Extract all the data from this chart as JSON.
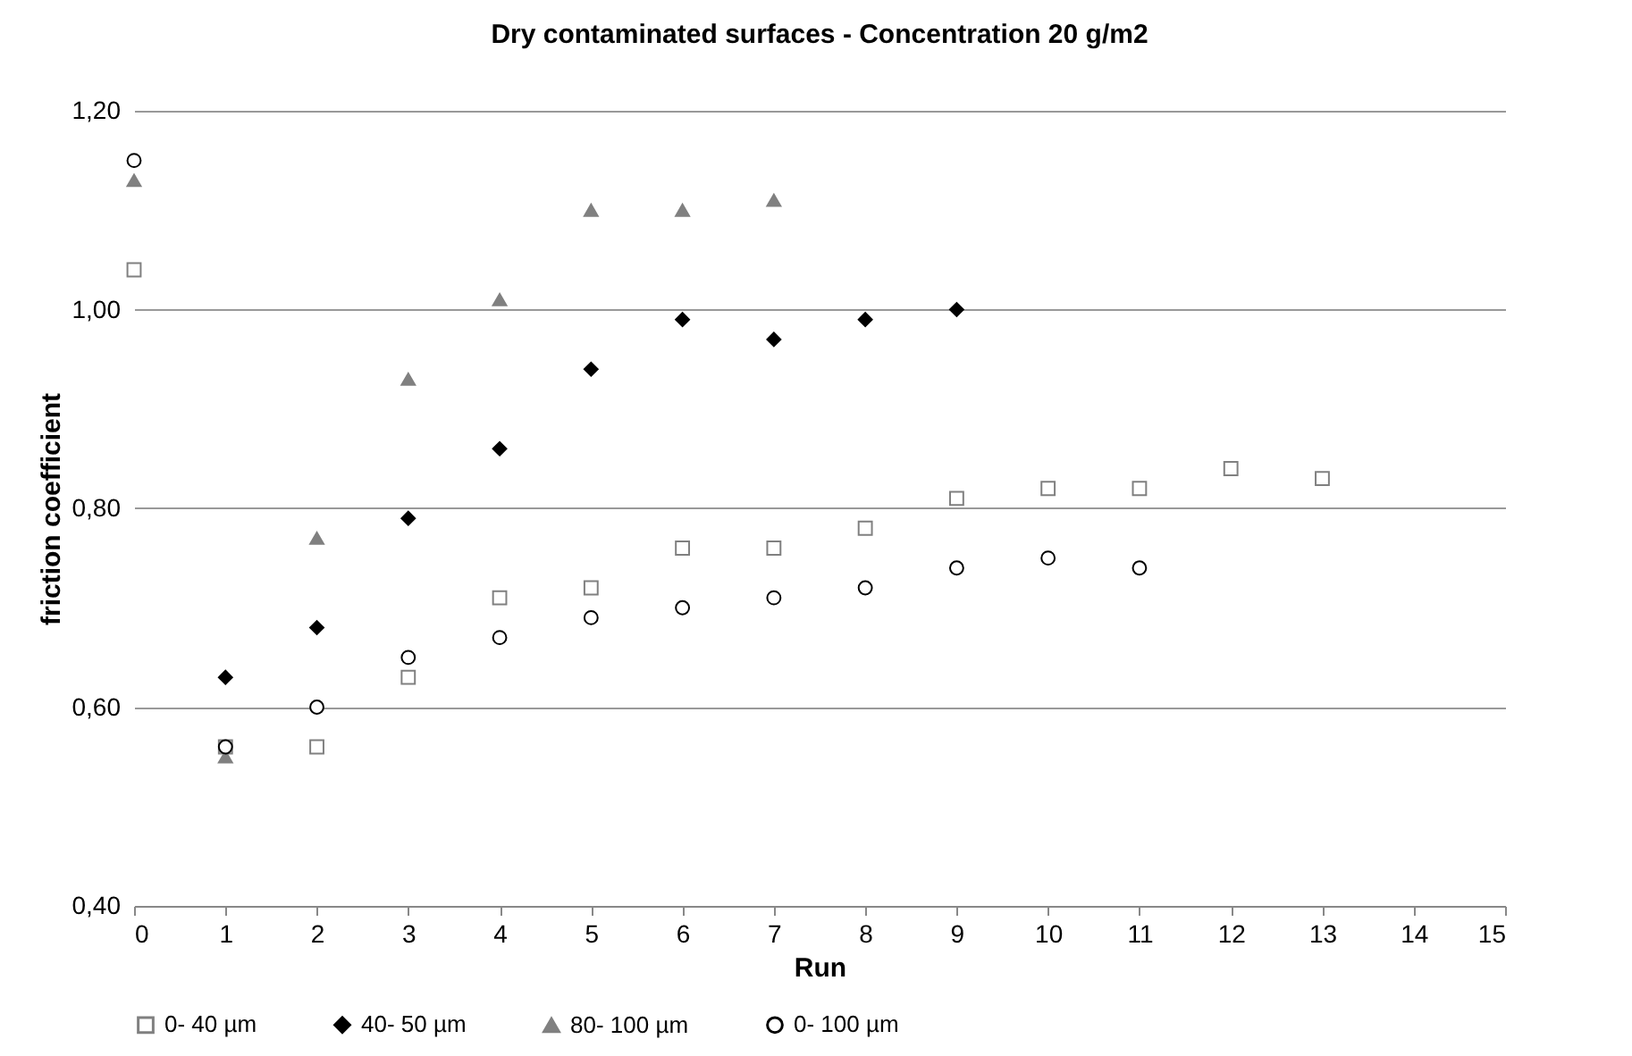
{
  "chart_data": {
    "type": "scatter",
    "title": "Dry contaminated  surfaces - Concentration  20 g/m2",
    "xlabel": "Run",
    "ylabel": "friction coefficient",
    "x": [
      0,
      1,
      2,
      3,
      4,
      5,
      6,
      7,
      8,
      9,
      10,
      11,
      12,
      13
    ],
    "series": [
      {
        "name": "0- 40 µm",
        "color": "#808080",
        "marker": "square",
        "values": [
          1.04,
          0.56,
          0.56,
          0.63,
          0.71,
          0.72,
          0.76,
          0.76,
          0.78,
          0.81,
          0.82,
          0.82,
          0.84,
          0.83
        ]
      },
      {
        "name": "40- 50 µm",
        "color": "#000000",
        "marker": "diamond",
        "values": [
          null,
          0.63,
          0.68,
          0.79,
          0.86,
          0.94,
          0.99,
          0.97,
          0.99,
          1.0,
          null,
          null,
          null,
          null
        ]
      },
      {
        "name": "80- 100 µm",
        "color": "#808080",
        "marker": "triangle",
        "values": [
          1.13,
          0.55,
          0.77,
          0.93,
          1.01,
          1.1,
          1.1,
          1.11,
          null,
          null,
          null,
          null,
          null,
          null
        ]
      },
      {
        "name": "0- 100 µm",
        "color": "#000000",
        "marker": "circle",
        "values": [
          1.15,
          0.56,
          0.6,
          0.65,
          0.67,
          0.69,
          0.7,
          0.71,
          0.72,
          0.74,
          0.75,
          0.74,
          null,
          null
        ]
      }
    ],
    "xlim": [
      0,
      15
    ],
    "xticks": [
      0,
      1,
      2,
      3,
      4,
      5,
      6,
      7,
      8,
      9,
      10,
      11,
      12,
      13,
      14,
      15
    ],
    "ylim": [
      0.4,
      1.2
    ],
    "yticks": [
      {
        "value": 0.4,
        "label": "0,40"
      },
      {
        "value": 0.6,
        "label": "0,60"
      },
      {
        "value": 0.8,
        "label": "0,80"
      },
      {
        "value": 1.0,
        "label": "1,00"
      },
      {
        "value": 1.2,
        "label": "1,20"
      }
    ],
    "grid": "y",
    "legend": "bottom"
  }
}
